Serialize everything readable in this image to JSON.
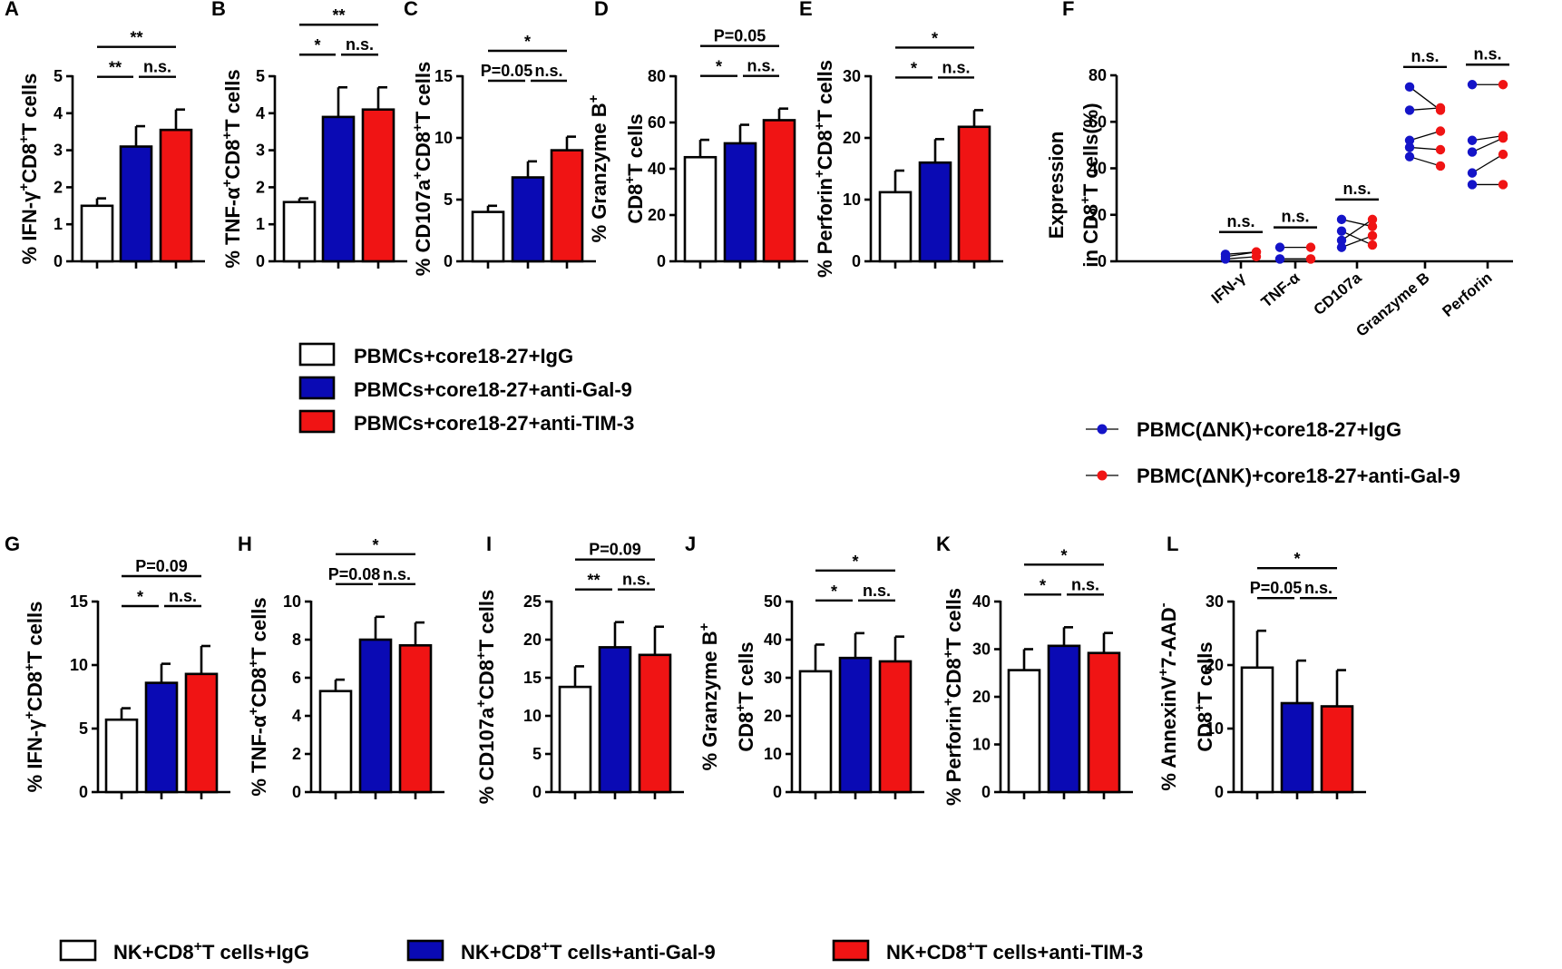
{
  "colors": {
    "igg": "#ffffff",
    "gal9": "#0a0ab4",
    "tim3": "#f01414",
    "blue_dot": "#1414c8",
    "red_dot": "#f01414"
  },
  "legend_top": [
    {
      "label": "PBMCs+core18-27+IgG",
      "color": "#ffffff"
    },
    {
      "label": "PBMCs+core18-27+anti-Gal-9",
      "color": "#0a0ab4"
    },
    {
      "label": "PBMCs+core18-27+anti-TIM-3",
      "color": "#f01414"
    }
  ],
  "legend_f": [
    {
      "label": "PBMC(ΔNK)+core18-27+IgG",
      "color": "#1414c8"
    },
    {
      "label": "PBMC(ΔNK)+core18-27+anti-Gal-9",
      "color": "#f01414"
    }
  ],
  "legend_bottom": [
    {
      "pre": "NK+CD8",
      "sup": "+",
      "post": "T cells+IgG",
      "color": "#ffffff"
    },
    {
      "pre": "NK+CD8",
      "sup": "+",
      "post": "T cells+anti-Gal-9",
      "color": "#0a0ab4"
    },
    {
      "pre": "NK+CD8",
      "sup": "+",
      "post": "T cells+anti-TIM-3",
      "color": "#f01414"
    }
  ],
  "chart_data": [
    {
      "panel": "A",
      "type": "bar",
      "ylabel": [
        [
          "% IFN-γ",
          ""
        ],
        [
          "+",
          "sup"
        ],
        [
          "CD8",
          ""
        ],
        [
          "+",
          "sup"
        ],
        [
          "T cells",
          ""
        ]
      ],
      "ylim": [
        0,
        5
      ],
      "ticks": [
        0,
        1,
        2,
        3,
        4,
        5
      ],
      "values": [
        1.5,
        3.1,
        3.55
      ],
      "errors": [
        0.2,
        0.55,
        0.55
      ],
      "comparisons": [
        {
          "from": 0,
          "to": 1,
          "label": "**"
        },
        {
          "from": 1,
          "to": 2,
          "label": "n.s."
        },
        {
          "from": 0,
          "to": 2,
          "label": "**"
        }
      ]
    },
    {
      "panel": "B",
      "type": "bar",
      "ylabel": [
        [
          "% TNF-α",
          ""
        ],
        [
          "+",
          "sup"
        ],
        [
          "CD8",
          ""
        ],
        [
          "+",
          "sup"
        ],
        [
          "T cells",
          ""
        ]
      ],
      "ylim": [
        0,
        5
      ],
      "ticks": [
        0,
        1,
        2,
        3,
        4,
        5
      ],
      "values": [
        1.6,
        3.9,
        4.1
      ],
      "errors": [
        0.1,
        0.8,
        0.6
      ],
      "comparisons": [
        {
          "from": 0,
          "to": 1,
          "label": "*"
        },
        {
          "from": 1,
          "to": 2,
          "label": "n.s."
        },
        {
          "from": 0,
          "to": 2,
          "label": "**"
        }
      ]
    },
    {
      "panel": "C",
      "type": "bar",
      "ylabel": [
        [
          "% CD107a",
          ""
        ],
        [
          "+",
          "sup"
        ],
        [
          "CD8",
          ""
        ],
        [
          "+",
          "sup"
        ],
        [
          "T cells",
          ""
        ]
      ],
      "ylim": [
        0,
        15
      ],
      "ticks": [
        0,
        5,
        10,
        15
      ],
      "values": [
        4.0,
        6.8,
        9.0
      ],
      "errors": [
        0.5,
        1.3,
        1.1
      ],
      "comparisons": [
        {
          "from": 0,
          "to": 1,
          "label": "P=0.05"
        },
        {
          "from": 1,
          "to": 2,
          "label": "n.s."
        },
        {
          "from": 0,
          "to": 2,
          "label": "*"
        }
      ]
    },
    {
      "panel": "D",
      "type": "bar",
      "ylabel": [
        [
          "% Granzyme B",
          ""
        ],
        [
          "+",
          "sup"
        ]
      ],
      "ylabel2": [
        [
          "CD8",
          ""
        ],
        [
          "+",
          "sup"
        ],
        [
          "T cells",
          ""
        ]
      ],
      "ylim": [
        0,
        80
      ],
      "ticks": [
        0,
        20,
        40,
        60,
        80
      ],
      "values": [
        45,
        51,
        61
      ],
      "errors": [
        7.5,
        8,
        5
      ],
      "comparisons": [
        {
          "from": 0,
          "to": 1,
          "label": "*"
        },
        {
          "from": 1,
          "to": 2,
          "label": "n.s."
        },
        {
          "from": 0,
          "to": 2,
          "label": "P=0.05"
        }
      ]
    },
    {
      "panel": "E",
      "type": "bar",
      "ylabel": [
        [
          "% Perforin",
          ""
        ],
        [
          "+",
          "sup"
        ],
        [
          "CD8",
          ""
        ],
        [
          "+",
          "sup"
        ],
        [
          "T cells",
          ""
        ]
      ],
      "ylim": [
        0,
        30
      ],
      "ticks": [
        0,
        10,
        20,
        30
      ],
      "values": [
        11.2,
        16.0,
        21.8
      ],
      "errors": [
        3.5,
        3.8,
        2.7
      ],
      "comparisons": [
        {
          "from": 0,
          "to": 1,
          "label": "*"
        },
        {
          "from": 1,
          "to": 2,
          "label": "n.s."
        },
        {
          "from": 0,
          "to": 2,
          "label": "*"
        }
      ]
    },
    {
      "panel": "F",
      "type": "scatter",
      "ylabel": [
        [
          "Expression",
          ""
        ]
      ],
      "ylabel2": [
        [
          "in CD8",
          ""
        ],
        [
          "+",
          "sup"
        ],
        [
          "T cells(%)",
          ""
        ]
      ],
      "ylim": [
        0,
        80
      ],
      "ticks": [
        0,
        20,
        40,
        60,
        80
      ],
      "categories": [
        "IFN-γ",
        "TNF-α",
        "CD107a",
        "Granzyme B",
        "Perforin"
      ],
      "significance": [
        "n.s.",
        "n.s.",
        "n.s.",
        "n.s.",
        "n.s."
      ],
      "pairs": [
        [
          [
            3,
            4
          ],
          [
            1,
            2
          ],
          [
            2,
            4
          ]
        ],
        [
          [
            6,
            6
          ],
          [
            1,
            1
          ],
          [
            1,
            1
          ]
        ],
        [
          [
            18,
            15
          ],
          [
            13,
            7
          ],
          [
            9,
            18
          ],
          [
            6,
            11
          ]
        ],
        [
          [
            75,
            65
          ],
          [
            65,
            66
          ],
          [
            52,
            56
          ],
          [
            49,
            48
          ],
          [
            45,
            41
          ]
        ],
        [
          [
            76,
            76
          ],
          [
            52,
            54
          ],
          [
            47,
            53
          ],
          [
            38,
            46
          ],
          [
            33,
            33
          ]
        ]
      ]
    },
    {
      "panel": "G",
      "type": "bar",
      "ylabel": [
        [
          "% IFN-γ",
          ""
        ],
        [
          "+",
          "sup"
        ],
        [
          "CD8",
          ""
        ],
        [
          "+",
          "sup"
        ],
        [
          "T cells",
          ""
        ]
      ],
      "ylim": [
        0,
        15
      ],
      "ticks": [
        0,
        5,
        10,
        15
      ],
      "values": [
        5.7,
        8.6,
        9.3
      ],
      "errors": [
        0.9,
        1.5,
        2.2
      ],
      "comparisons": [
        {
          "from": 0,
          "to": 1,
          "label": "*"
        },
        {
          "from": 1,
          "to": 2,
          "label": "n.s."
        },
        {
          "from": 0,
          "to": 2,
          "label": "P=0.09"
        }
      ]
    },
    {
      "panel": "H",
      "type": "bar",
      "ylabel": [
        [
          "% TNF-α",
          ""
        ],
        [
          "+",
          "sup"
        ],
        [
          "CD8",
          ""
        ],
        [
          "+",
          "sup"
        ],
        [
          "T cells",
          ""
        ]
      ],
      "ylim": [
        0,
        10
      ],
      "ticks": [
        0,
        2,
        4,
        6,
        8,
        10
      ],
      "values": [
        5.3,
        8.0,
        7.7
      ],
      "errors": [
        0.6,
        1.2,
        1.2
      ],
      "comparisons": [
        {
          "from": 0,
          "to": 1,
          "label": "P=0.08"
        },
        {
          "from": 1,
          "to": 2,
          "label": "n.s."
        },
        {
          "from": 0,
          "to": 2,
          "label": "*"
        }
      ]
    },
    {
      "panel": "I",
      "type": "bar",
      "ylabel": [
        [
          "% CD107a",
          ""
        ],
        [
          "+",
          "sup"
        ],
        [
          "CD8",
          ""
        ],
        [
          "+",
          "sup"
        ],
        [
          "T cells",
          ""
        ]
      ],
      "ylim": [
        0,
        25
      ],
      "ticks": [
        0,
        5,
        10,
        15,
        20,
        25
      ],
      "values": [
        13.8,
        19.0,
        18.0
      ],
      "errors": [
        2.7,
        3.3,
        3.7
      ],
      "comparisons": [
        {
          "from": 0,
          "to": 1,
          "label": "**"
        },
        {
          "from": 1,
          "to": 2,
          "label": "n.s."
        },
        {
          "from": 0,
          "to": 2,
          "label": "P=0.09"
        }
      ]
    },
    {
      "panel": "J",
      "type": "bar",
      "ylabel": [
        [
          "% Granzyme B",
          ""
        ],
        [
          "+",
          "sup"
        ]
      ],
      "ylabel2": [
        [
          "CD8",
          ""
        ],
        [
          "+",
          "sup"
        ],
        [
          "T cells",
          ""
        ]
      ],
      "ylim": [
        0,
        50
      ],
      "ticks": [
        0,
        10,
        20,
        30,
        40,
        50
      ],
      "values": [
        31.7,
        35.2,
        34.3
      ],
      "errors": [
        7.0,
        6.5,
        6.5
      ],
      "comparisons": [
        {
          "from": 0,
          "to": 1,
          "label": "*"
        },
        {
          "from": 1,
          "to": 2,
          "label": "n.s."
        },
        {
          "from": 0,
          "to": 2,
          "label": "*"
        }
      ]
    },
    {
      "panel": "K",
      "type": "bar",
      "ylabel": [
        [
          "% Perforin",
          ""
        ],
        [
          "+",
          "sup"
        ],
        [
          "CD8",
          ""
        ],
        [
          "+",
          "sup"
        ],
        [
          "T cells",
          ""
        ]
      ],
      "ylim": [
        0,
        40
      ],
      "ticks": [
        0,
        10,
        20,
        30,
        40
      ],
      "values": [
        25.6,
        30.7,
        29.2
      ],
      "errors": [
        4.4,
        3.9,
        4.2
      ],
      "comparisons": [
        {
          "from": 0,
          "to": 1,
          "label": "*"
        },
        {
          "from": 1,
          "to": 2,
          "label": "n.s."
        },
        {
          "from": 0,
          "to": 2,
          "label": "*"
        }
      ]
    },
    {
      "panel": "L",
      "type": "bar",
      "ylabel": [
        [
          "% AnnexinV",
          ""
        ],
        [
          "+",
          "sup"
        ],
        [
          "7-AAD",
          ""
        ],
        [
          "-",
          "sup"
        ]
      ],
      "ylabel2": [
        [
          "CD8",
          ""
        ],
        [
          "+",
          "sup"
        ],
        [
          "T cells",
          ""
        ]
      ],
      "ylim": [
        0,
        30
      ],
      "ticks": [
        0,
        10,
        20,
        30
      ],
      "values": [
        19.6,
        14.0,
        13.5
      ],
      "errors": [
        5.8,
        6.7,
        5.7
      ],
      "comparisons": [
        {
          "from": 0,
          "to": 1,
          "label": "P=0.05"
        },
        {
          "from": 1,
          "to": 2,
          "label": "n.s."
        },
        {
          "from": 0,
          "to": 2,
          "label": "*"
        }
      ]
    }
  ]
}
